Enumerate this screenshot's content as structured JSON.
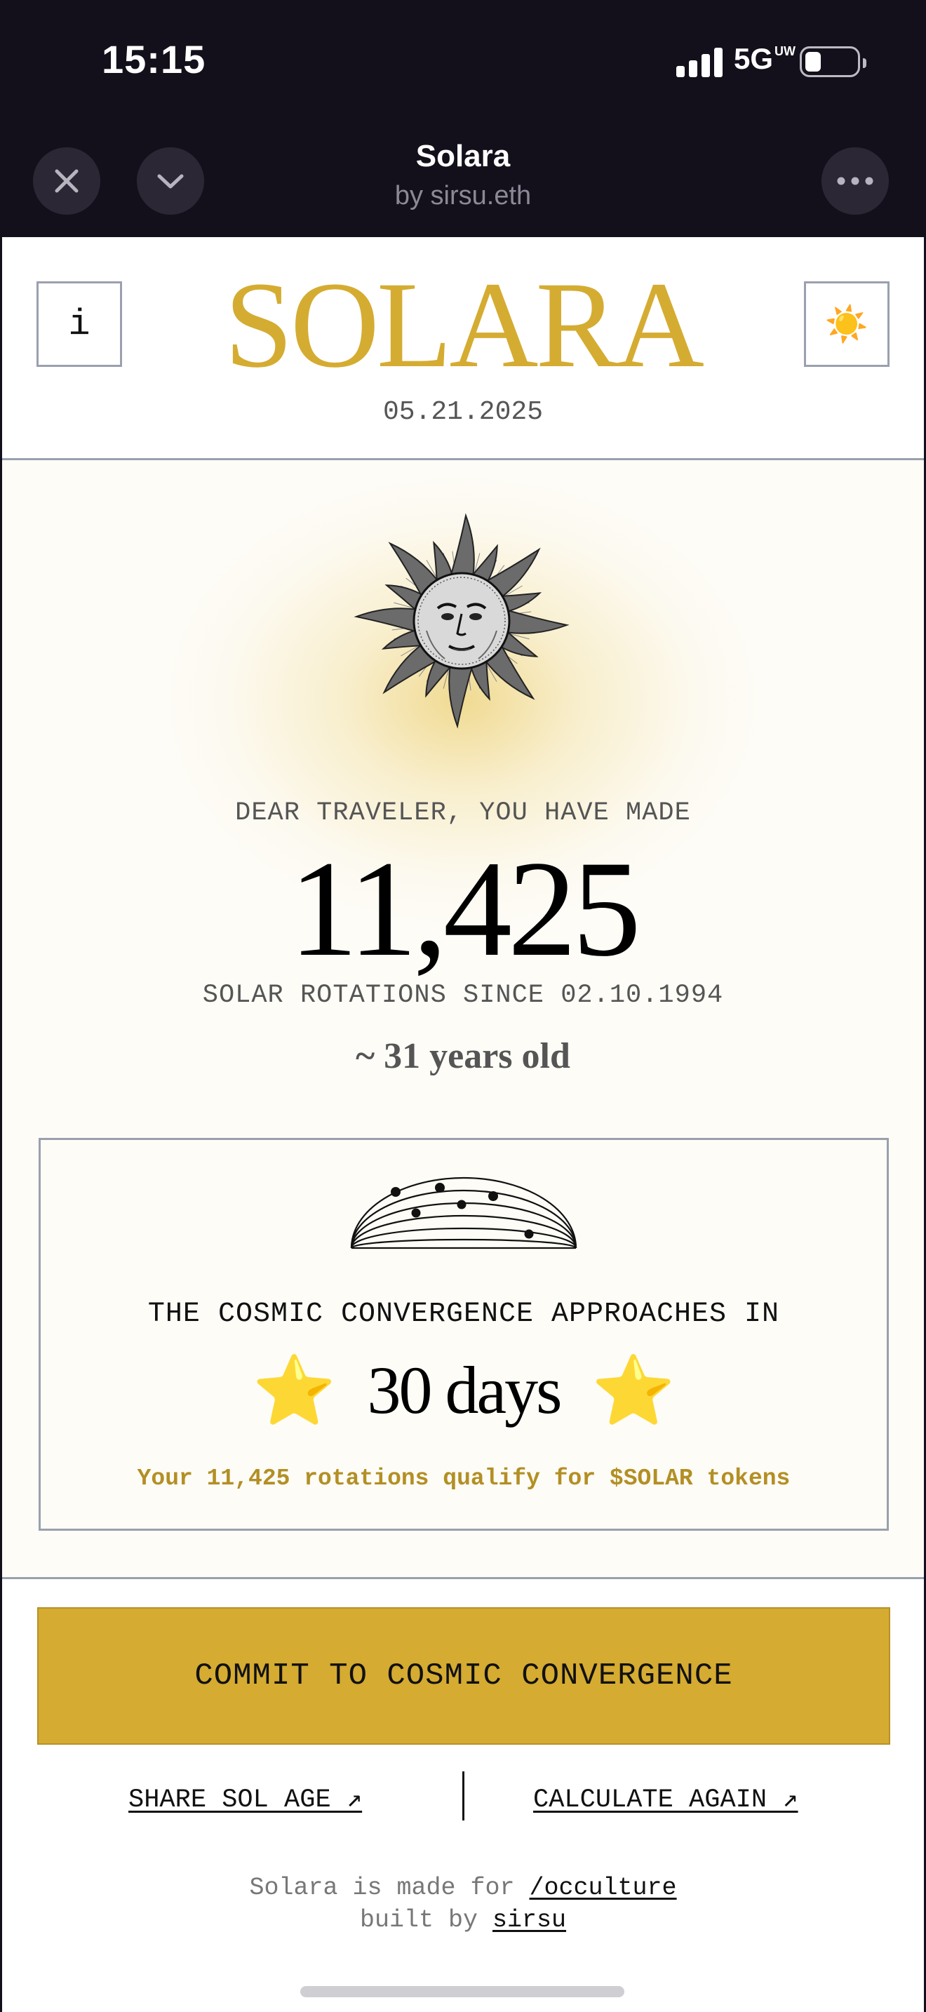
{
  "status": {
    "time": "15:15",
    "network": "5G",
    "network_sup": "UW"
  },
  "app": {
    "name": "Solara",
    "byline": "by sirsu.eth"
  },
  "header": {
    "info_label": "i",
    "logo": "SOLARA",
    "date": "05.21.2025",
    "theme_icon": "☀️"
  },
  "hero": {
    "lead": "DEAR TRAVELER, YOU HAVE MADE",
    "rotations": "11,425",
    "since": "SOLAR ROTATIONS SINCE 02.10.1994",
    "age": "~ 31 years old"
  },
  "convergence": {
    "heading": "THE COSMIC CONVERGENCE APPROACHES IN",
    "star": "⭐",
    "countdown": "30 days",
    "qualify": "Your 11,425 rotations qualify for $SOLAR tokens"
  },
  "actions": {
    "commit": "COMMIT TO COSMIC CONVERGENCE",
    "share": "SHARE SOL AGE ↗",
    "again": "CALCULATE AGAIN ↗"
  },
  "footer": {
    "made_for": "Solara is made for ",
    "channel": "/occulture",
    "built_by": "built by ",
    "author": "sirsu"
  },
  "colors": {
    "gold": "#d5ab31",
    "gold_text": "#b38f24",
    "dark": "#14101b"
  }
}
